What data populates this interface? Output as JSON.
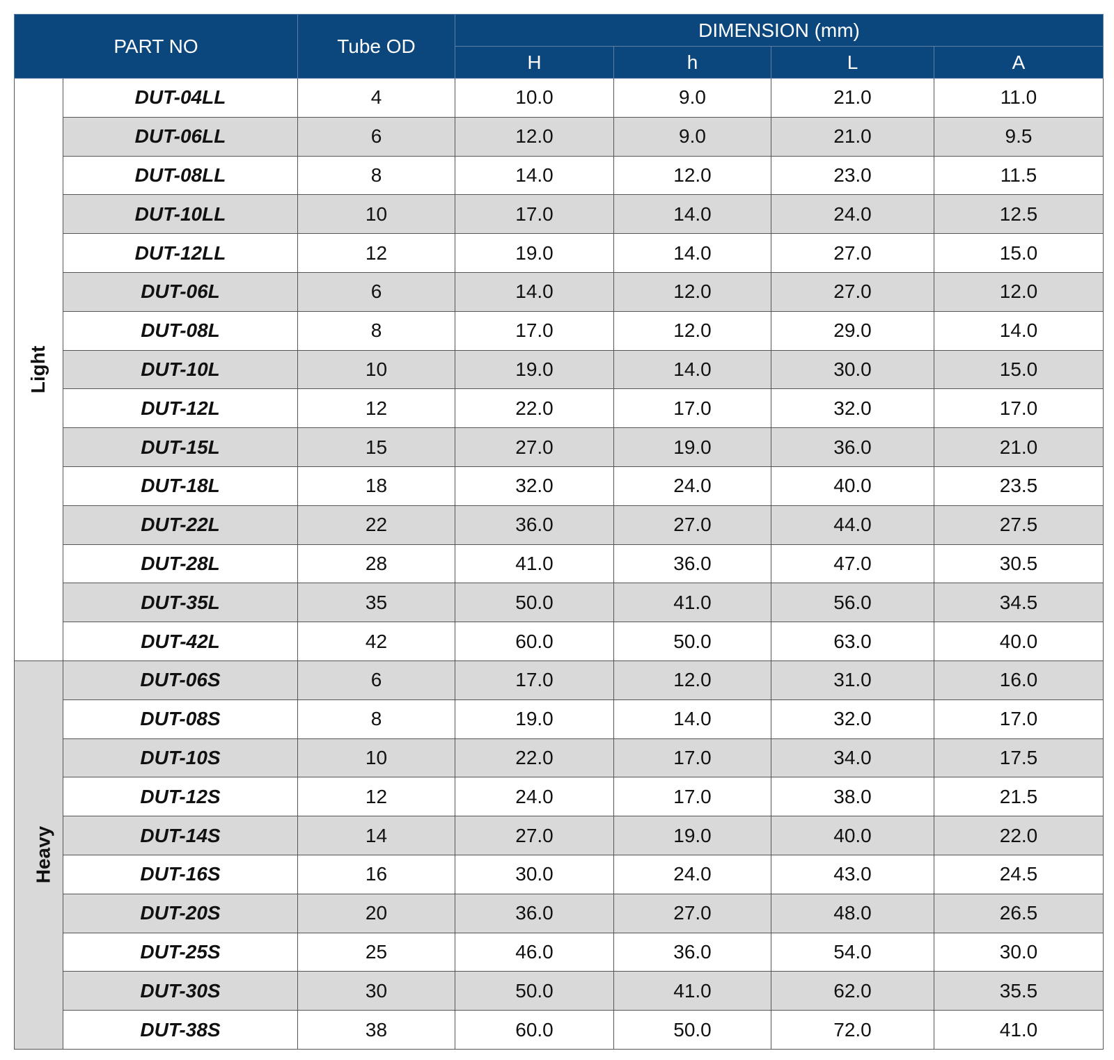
{
  "header": {
    "part_no": "PART NO",
    "tube_od": "Tube OD",
    "dimension": "DIMENSION (mm)",
    "dims": [
      "H",
      "h",
      "L",
      "A"
    ]
  },
  "colors": {
    "header_bg": "#0b467c",
    "stripe": "#d9d9d9"
  },
  "groups": [
    {
      "label": "Light",
      "rows": [
        [
          "DUT-04LL",
          "4",
          "10.0",
          "9.0",
          "21.0",
          "11.0"
        ],
        [
          "DUT-06LL",
          "6",
          "12.0",
          "9.0",
          "21.0",
          "9.5"
        ],
        [
          "DUT-08LL",
          "8",
          "14.0",
          "12.0",
          "23.0",
          "11.5"
        ],
        [
          "DUT-10LL",
          "10",
          "17.0",
          "14.0",
          "24.0",
          "12.5"
        ],
        [
          "DUT-12LL",
          "12",
          "19.0",
          "14.0",
          "27.0",
          "15.0"
        ],
        [
          "DUT-06L",
          "6",
          "14.0",
          "12.0",
          "27.0",
          "12.0"
        ],
        [
          "DUT-08L",
          "8",
          "17.0",
          "12.0",
          "29.0",
          "14.0"
        ],
        [
          "DUT-10L",
          "10",
          "19.0",
          "14.0",
          "30.0",
          "15.0"
        ],
        [
          "DUT-12L",
          "12",
          "22.0",
          "17.0",
          "32.0",
          "17.0"
        ],
        [
          "DUT-15L",
          "15",
          "27.0",
          "19.0",
          "36.0",
          "21.0"
        ],
        [
          "DUT-18L",
          "18",
          "32.0",
          "24.0",
          "40.0",
          "23.5"
        ],
        [
          "DUT-22L",
          "22",
          "36.0",
          "27.0",
          "44.0",
          "27.5"
        ],
        [
          "DUT-28L",
          "28",
          "41.0",
          "36.0",
          "47.0",
          "30.5"
        ],
        [
          "DUT-35L",
          "35",
          "50.0",
          "41.0",
          "56.0",
          "34.5"
        ],
        [
          "DUT-42L",
          "42",
          "60.0",
          "50.0",
          "63.0",
          "40.0"
        ]
      ]
    },
    {
      "label": "Heavy",
      "rows": [
        [
          "DUT-06S",
          "6",
          "17.0",
          "12.0",
          "31.0",
          "16.0"
        ],
        [
          "DUT-08S",
          "8",
          "19.0",
          "14.0",
          "32.0",
          "17.0"
        ],
        [
          "DUT-10S",
          "10",
          "22.0",
          "17.0",
          "34.0",
          "17.5"
        ],
        [
          "DUT-12S",
          "12",
          "24.0",
          "17.0",
          "38.0",
          "21.5"
        ],
        [
          "DUT-14S",
          "14",
          "27.0",
          "19.0",
          "40.0",
          "22.0"
        ],
        [
          "DUT-16S",
          "16",
          "30.0",
          "24.0",
          "43.0",
          "24.5"
        ],
        [
          "DUT-20S",
          "20",
          "36.0",
          "27.0",
          "48.0",
          "26.5"
        ],
        [
          "DUT-25S",
          "25",
          "46.0",
          "36.0",
          "54.0",
          "30.0"
        ],
        [
          "DUT-30S",
          "30",
          "50.0",
          "41.0",
          "62.0",
          "35.5"
        ],
        [
          "DUT-38S",
          "38",
          "60.0",
          "50.0",
          "72.0",
          "41.0"
        ]
      ]
    }
  ]
}
